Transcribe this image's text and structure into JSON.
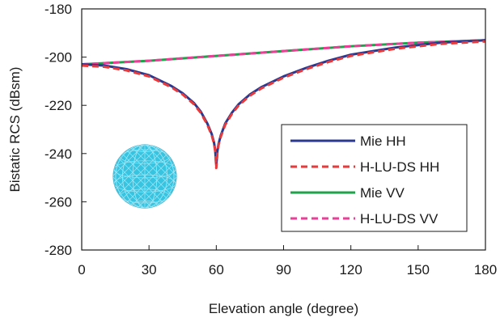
{
  "chart_data": {
    "type": "line",
    "title": "",
    "xlabel": "Elevation angle (degree)",
    "ylabel": "Bistatic RCS (dBsm)",
    "xlim": [
      0,
      180
    ],
    "ylim": [
      -280,
      -180
    ],
    "xticks": [
      0,
      30,
      60,
      90,
      120,
      150,
      180
    ],
    "yticks": [
      -180,
      -200,
      -220,
      -240,
      -260,
      -280
    ],
    "grid": false,
    "legend_position": "lower-right",
    "series": [
      {
        "name": "Mie HH",
        "color": "#2b3990",
        "style": "solid",
        "x": [
          0,
          10,
          20,
          30,
          40,
          45,
          50,
          53,
          56,
          58,
          59,
          59.5,
          60,
          60.5,
          61,
          62,
          64,
          67,
          70,
          75,
          80,
          90,
          100,
          110,
          120,
          130,
          140,
          150,
          160,
          170,
          180
        ],
        "y": [
          -203,
          -203.5,
          -205,
          -207.5,
          -212,
          -215,
          -219,
          -222.5,
          -227.5,
          -232,
          -235.5,
          -238.5,
          -245,
          -239,
          -236,
          -232.5,
          -227.5,
          -223,
          -219.5,
          -215.5,
          -212.5,
          -208,
          -204.5,
          -201.5,
          -199,
          -197.5,
          -196,
          -195,
          -194,
          -193.5,
          -193
        ]
      },
      {
        "name": "H-LU-DS HH",
        "color": "#e83a3a",
        "style": "dashed",
        "x": [
          0,
          10,
          20,
          30,
          40,
          45,
          50,
          53,
          56,
          58,
          59,
          59.5,
          60,
          60.5,
          61,
          62,
          64,
          67,
          70,
          75,
          80,
          90,
          100,
          110,
          120,
          130,
          140,
          150,
          160,
          170,
          180
        ],
        "y": [
          -203.5,
          -204,
          -205.5,
          -208,
          -212.5,
          -215.5,
          -219.5,
          -223,
          -228,
          -232.5,
          -236,
          -239,
          -246,
          -239.5,
          -236.5,
          -233,
          -228,
          -223.5,
          -220,
          -216,
          -213,
          -208.5,
          -205,
          -202,
          -199.5,
          -198,
          -196.5,
          -195.5,
          -194.5,
          -194,
          -193.5
        ]
      },
      {
        "name": "Mie VV",
        "color": "#1fa34a",
        "style": "solid",
        "x": [
          0,
          30,
          60,
          90,
          120,
          150,
          180
        ],
        "y": [
          -203,
          -201.5,
          -199.5,
          -197.5,
          -195.5,
          -194,
          -193
        ]
      },
      {
        "name": "H-LU-DS VV",
        "color": "#ec3d97",
        "style": "dashed",
        "x": [
          0,
          30,
          60,
          90,
          120,
          150,
          180
        ],
        "y": [
          -203,
          -201.5,
          -199.5,
          -197.5,
          -195.5,
          -194,
          -193
        ]
      }
    ]
  },
  "colors": {
    "sphere_fill": "#37c4e0",
    "sphere_mesh": "#9fe6f5"
  },
  "icons": {
    "inset": "triangulated-sphere-icon"
  }
}
